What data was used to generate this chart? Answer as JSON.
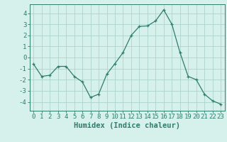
{
  "x": [
    0,
    1,
    2,
    3,
    4,
    5,
    6,
    7,
    8,
    9,
    10,
    11,
    12,
    13,
    14,
    15,
    16,
    17,
    18,
    19,
    20,
    21,
    22,
    23
  ],
  "y": [
    -0.6,
    -1.7,
    -1.6,
    -0.8,
    -0.8,
    -1.7,
    -2.2,
    -3.6,
    -3.3,
    -1.5,
    -0.55,
    0.45,
    2.0,
    2.8,
    2.85,
    3.3,
    4.3,
    3.0,
    0.45,
    -1.7,
    -2.0,
    -3.3,
    -3.9,
    -4.2
  ],
  "line_color": "#2e7d6e",
  "marker": "+",
  "marker_color": "#2e7d6e",
  "bg_color": "#d6f0eb",
  "grid_color": "#aed4cc",
  "axis_color": "#2e7d6e",
  "xlabel": "Humidex (Indice chaleur)",
  "ylim": [
    -4.8,
    4.8
  ],
  "xlim": [
    -0.5,
    23.5
  ],
  "yticks": [
    -4,
    -3,
    -2,
    -1,
    0,
    1,
    2,
    3,
    4
  ],
  "xtick_labels": [
    "0",
    "1",
    "2",
    "3",
    "4",
    "5",
    "6",
    "7",
    "8",
    "9",
    "10",
    "11",
    "12",
    "13",
    "14",
    "15",
    "16",
    "17",
    "18",
    "19",
    "20",
    "21",
    "22",
    "23"
  ],
  "label_fontsize": 7.5,
  "tick_fontsize": 6.5
}
